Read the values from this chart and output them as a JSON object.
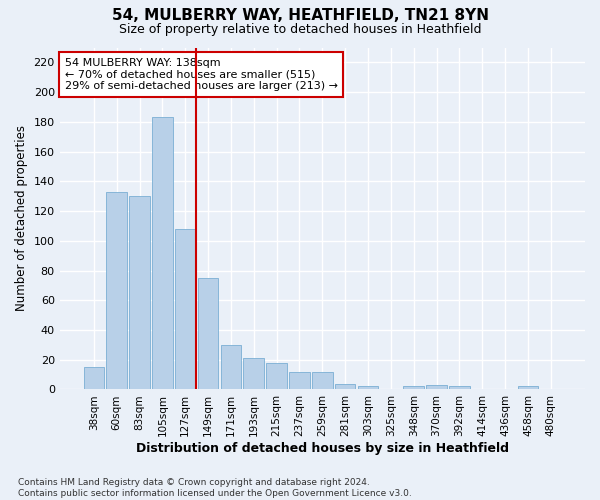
{
  "title_line1": "54, MULBERRY WAY, HEATHFIELD, TN21 8YN",
  "title_line2": "Size of property relative to detached houses in Heathfield",
  "xlabel": "Distribution of detached houses by size in Heathfield",
  "ylabel": "Number of detached properties",
  "categories": [
    "38sqm",
    "60sqm",
    "83sqm",
    "105sqm",
    "127sqm",
    "149sqm",
    "171sqm",
    "193sqm",
    "215sqm",
    "237sqm",
    "259sqm",
    "281sqm",
    "303sqm",
    "325sqm",
    "348sqm",
    "370sqm",
    "392sqm",
    "414sqm",
    "436sqm",
    "458sqm",
    "480sqm"
  ],
  "values": [
    15,
    133,
    130,
    183,
    108,
    75,
    30,
    21,
    18,
    12,
    12,
    4,
    2,
    0,
    2,
    3,
    2,
    0,
    0,
    2,
    0
  ],
  "bar_color": "#b8d0e8",
  "bar_edge_color": "#7aafd4",
  "background_color": "#eaf0f8",
  "grid_color": "#ffffff",
  "vline_x_index": 4,
  "vline_color": "#cc0000",
  "annotation_line1": "54 MULBERRY WAY: 138sqm",
  "annotation_line2": "← 70% of detached houses are smaller (515)",
  "annotation_line3": "29% of semi-detached houses are larger (213) →",
  "annotation_box_color": "#ffffff",
  "annotation_box_edge": "#cc0000",
  "ylim": [
    0,
    230
  ],
  "yticks": [
    0,
    20,
    40,
    60,
    80,
    100,
    120,
    140,
    160,
    180,
    200,
    220
  ],
  "footnote": "Contains HM Land Registry data © Crown copyright and database right 2024.\nContains public sector information licensed under the Open Government Licence v3.0."
}
